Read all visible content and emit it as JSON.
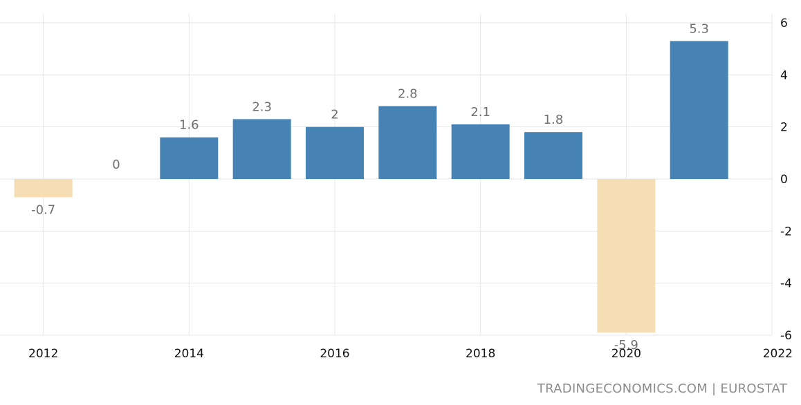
{
  "chart_data": {
    "type": "bar",
    "x": [
      2012,
      2013,
      2014,
      2015,
      2016,
      2017,
      2018,
      2019,
      2020,
      2021
    ],
    "values": [
      -0.7,
      0,
      1.6,
      2.3,
      2,
      2.8,
      2.1,
      1.8,
      -5.9,
      5.3
    ],
    "data_labels": [
      "-0.7",
      "0",
      "1.6",
      "2.3",
      "2",
      "2.8",
      "2.1",
      "1.8",
      "-5.9",
      "5.3"
    ],
    "x_ticks": [
      "2012",
      "2014",
      "2016",
      "2018",
      "2020",
      "2022"
    ],
    "y_ticks": [
      "6",
      "4",
      "2",
      "0",
      "-2",
      "-4",
      "-6"
    ],
    "ylim": [
      -6,
      6
    ],
    "xlim": [
      2011.5,
      2022
    ],
    "y_axis_position": "right",
    "grid": true,
    "colors": {
      "positive": "#4682b4",
      "negative": "#f5deb3",
      "grid": "#e6e6e6",
      "label": "#6f6f6f"
    }
  },
  "footer": {
    "source": "TRADINGECONOMICS.COM | EUROSTAT"
  }
}
